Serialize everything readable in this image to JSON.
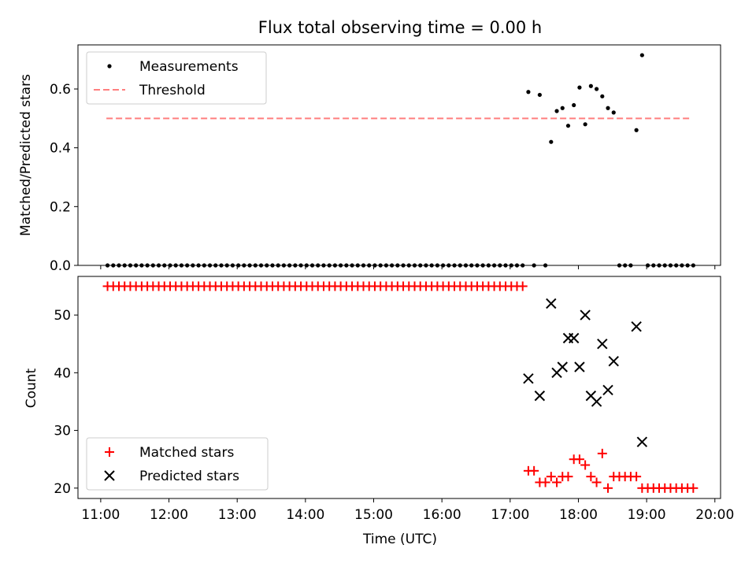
{
  "chart_data": [
    {
      "type": "scatter",
      "title": "Flux total observing time = 0.00 h",
      "xlabel": "",
      "ylabel": "Matched/Predicted stars",
      "xlim": [
        "10:40",
        "20:05"
      ],
      "ylim": [
        0,
        0.75
      ],
      "yticks": [
        0.0,
        0.2,
        0.4,
        0.6
      ],
      "ytick_labels": [
        "0.0",
        "0.2",
        "0.4",
        "0.6"
      ],
      "grid": false,
      "legend_position": "upper-left",
      "threshold": {
        "name": "Threshold",
        "value": 0.5,
        "x_start": "11:05",
        "x_end": "19:40",
        "color": "#ff7f7f",
        "style": "dashed"
      },
      "series": [
        {
          "name": "Measurements",
          "marker": "dot",
          "color": "#000000",
          "points": [
            [
              "11:06",
              0
            ],
            [
              "11:11",
              0
            ],
            [
              "11:16",
              0
            ],
            [
              "11:21",
              0
            ],
            [
              "11:26",
              0
            ],
            [
              "11:31",
              0
            ],
            [
              "11:36",
              0
            ],
            [
              "11:41",
              0
            ],
            [
              "11:46",
              0
            ],
            [
              "11:51",
              0
            ],
            [
              "11:56",
              0
            ],
            [
              "12:01",
              0
            ],
            [
              "12:06",
              0
            ],
            [
              "12:11",
              0
            ],
            [
              "12:16",
              0
            ],
            [
              "12:21",
              0
            ],
            [
              "12:26",
              0
            ],
            [
              "12:31",
              0
            ],
            [
              "12:36",
              0
            ],
            [
              "12:41",
              0
            ],
            [
              "12:46",
              0
            ],
            [
              "12:51",
              0
            ],
            [
              "12:56",
              0
            ],
            [
              "13:01",
              0
            ],
            [
              "13:06",
              0
            ],
            [
              "13:11",
              0
            ],
            [
              "13:16",
              0
            ],
            [
              "13:21",
              0
            ],
            [
              "13:26",
              0
            ],
            [
              "13:31",
              0
            ],
            [
              "13:36",
              0
            ],
            [
              "13:41",
              0
            ],
            [
              "13:46",
              0
            ],
            [
              "13:51",
              0
            ],
            [
              "13:56",
              0
            ],
            [
              "14:01",
              0
            ],
            [
              "14:06",
              0
            ],
            [
              "14:11",
              0
            ],
            [
              "14:16",
              0
            ],
            [
              "14:21",
              0
            ],
            [
              "14:26",
              0
            ],
            [
              "14:31",
              0
            ],
            [
              "14:36",
              0
            ],
            [
              "14:41",
              0
            ],
            [
              "14:46",
              0
            ],
            [
              "14:51",
              0
            ],
            [
              "14:56",
              0
            ],
            [
              "15:01",
              0
            ],
            [
              "15:06",
              0
            ],
            [
              "15:11",
              0
            ],
            [
              "15:16",
              0
            ],
            [
              "15:21",
              0
            ],
            [
              "15:26",
              0
            ],
            [
              "15:31",
              0
            ],
            [
              "15:36",
              0
            ],
            [
              "15:41",
              0
            ],
            [
              "15:46",
              0
            ],
            [
              "15:51",
              0
            ],
            [
              "15:56",
              0
            ],
            [
              "16:01",
              0
            ],
            [
              "16:06",
              0
            ],
            [
              "16:11",
              0
            ],
            [
              "16:16",
              0
            ],
            [
              "16:21",
              0
            ],
            [
              "16:26",
              0
            ],
            [
              "16:31",
              0
            ],
            [
              "16:36",
              0
            ],
            [
              "16:41",
              0
            ],
            [
              "16:46",
              0
            ],
            [
              "16:51",
              0
            ],
            [
              "16:56",
              0
            ],
            [
              "17:01",
              0
            ],
            [
              "17:06",
              0
            ],
            [
              "17:11",
              0
            ],
            [
              "17:16",
              0.59
            ],
            [
              "17:21",
              0
            ],
            [
              "17:26",
              0.58
            ],
            [
              "17:31",
              0
            ],
            [
              "17:36",
              0.42
            ],
            [
              "17:41",
              0.525
            ],
            [
              "17:46",
              0.535
            ],
            [
              "17:51",
              0.475
            ],
            [
              "17:56",
              0.545
            ],
            [
              "18:01",
              0.605
            ],
            [
              "18:06",
              0.48
            ],
            [
              "18:11",
              0.61
            ],
            [
              "18:16",
              0.6
            ],
            [
              "18:21",
              0.575
            ],
            [
              "18:26",
              0.535
            ],
            [
              "18:31",
              0.52
            ],
            [
              "18:36",
              0
            ],
            [
              "18:41",
              0
            ],
            [
              "18:46",
              0
            ],
            [
              "18:51",
              0.46
            ],
            [
              "18:56",
              0.715
            ],
            [
              "19:01",
              0
            ],
            [
              "19:06",
              0
            ],
            [
              "19:11",
              0
            ],
            [
              "19:16",
              0
            ],
            [
              "19:21",
              0
            ],
            [
              "19:26",
              0
            ],
            [
              "19:31",
              0
            ],
            [
              "19:36",
              0
            ],
            [
              "19:41",
              0
            ]
          ]
        }
      ]
    },
    {
      "type": "scatter",
      "title": "",
      "xlabel": "Time (UTC)",
      "ylabel": "Count",
      "xlim": [
        "10:40",
        "20:05"
      ],
      "ylim": [
        18.2,
        56.7
      ],
      "xticks": [
        "11:00",
        "12:00",
        "13:00",
        "14:00",
        "15:00",
        "16:00",
        "17:00",
        "18:00",
        "19:00",
        "20:00"
      ],
      "yticks": [
        20,
        30,
        40,
        50
      ],
      "ytick_labels": [
        "20",
        "30",
        "40",
        "50"
      ],
      "grid": false,
      "legend_position": "lower-left",
      "series": [
        {
          "name": "Matched stars",
          "marker": "plus",
          "color": "#ff0000",
          "points": [
            [
              "11:06",
              55
            ],
            [
              "11:11",
              55
            ],
            [
              "11:16",
              55
            ],
            [
              "11:21",
              55
            ],
            [
              "11:26",
              55
            ],
            [
              "11:31",
              55
            ],
            [
              "11:36",
              55
            ],
            [
              "11:41",
              55
            ],
            [
              "11:46",
              55
            ],
            [
              "11:51",
              55
            ],
            [
              "11:56",
              55
            ],
            [
              "12:01",
              55
            ],
            [
              "12:06",
              55
            ],
            [
              "12:11",
              55
            ],
            [
              "12:16",
              55
            ],
            [
              "12:21",
              55
            ],
            [
              "12:26",
              55
            ],
            [
              "12:31",
              55
            ],
            [
              "12:36",
              55
            ],
            [
              "12:41",
              55
            ],
            [
              "12:46",
              55
            ],
            [
              "12:51",
              55
            ],
            [
              "12:56",
              55
            ],
            [
              "13:01",
              55
            ],
            [
              "13:06",
              55
            ],
            [
              "13:11",
              55
            ],
            [
              "13:16",
              55
            ],
            [
              "13:21",
              55
            ],
            [
              "13:26",
              55
            ],
            [
              "13:31",
              55
            ],
            [
              "13:36",
              55
            ],
            [
              "13:41",
              55
            ],
            [
              "13:46",
              55
            ],
            [
              "13:51",
              55
            ],
            [
              "13:56",
              55
            ],
            [
              "14:01",
              55
            ],
            [
              "14:06",
              55
            ],
            [
              "14:11",
              55
            ],
            [
              "14:16",
              55
            ],
            [
              "14:21",
              55
            ],
            [
              "14:26",
              55
            ],
            [
              "14:31",
              55
            ],
            [
              "14:36",
              55
            ],
            [
              "14:41",
              55
            ],
            [
              "14:46",
              55
            ],
            [
              "14:51",
              55
            ],
            [
              "14:56",
              55
            ],
            [
              "15:01",
              55
            ],
            [
              "15:06",
              55
            ],
            [
              "15:11",
              55
            ],
            [
              "15:16",
              55
            ],
            [
              "15:21",
              55
            ],
            [
              "15:26",
              55
            ],
            [
              "15:31",
              55
            ],
            [
              "15:36",
              55
            ],
            [
              "15:41",
              55
            ],
            [
              "15:46",
              55
            ],
            [
              "15:51",
              55
            ],
            [
              "15:56",
              55
            ],
            [
              "16:01",
              55
            ],
            [
              "16:06",
              55
            ],
            [
              "16:11",
              55
            ],
            [
              "16:16",
              55
            ],
            [
              "16:21",
              55
            ],
            [
              "16:26",
              55
            ],
            [
              "16:31",
              55
            ],
            [
              "16:36",
              55
            ],
            [
              "16:41",
              55
            ],
            [
              "16:46",
              55
            ],
            [
              "16:51",
              55
            ],
            [
              "16:56",
              55
            ],
            [
              "17:01",
              55
            ],
            [
              "17:06",
              55
            ],
            [
              "17:11",
              55
            ],
            [
              "17:16",
              23
            ],
            [
              "17:21",
              23
            ],
            [
              "17:26",
              21
            ],
            [
              "17:31",
              21
            ],
            [
              "17:36",
              22
            ],
            [
              "17:41",
              21
            ],
            [
              "17:46",
              22
            ],
            [
              "17:51",
              22
            ],
            [
              "17:56",
              25
            ],
            [
              "18:01",
              25
            ],
            [
              "18:06",
              24
            ],
            [
              "18:11",
              22
            ],
            [
              "18:16",
              21
            ],
            [
              "18:21",
              26
            ],
            [
              "18:26",
              20
            ],
            [
              "18:31",
              22
            ],
            [
              "18:36",
              22
            ],
            [
              "18:41",
              22
            ],
            [
              "18:46",
              22
            ],
            [
              "18:51",
              22
            ],
            [
              "18:56",
              20
            ],
            [
              "19:01",
              20
            ],
            [
              "19:06",
              20
            ],
            [
              "19:11",
              20
            ],
            [
              "19:16",
              20
            ],
            [
              "19:21",
              20
            ],
            [
              "19:26",
              20
            ],
            [
              "19:31",
              20
            ],
            [
              "19:36",
              20
            ],
            [
              "19:41",
              20
            ]
          ]
        },
        {
          "name": "Predicted stars",
          "marker": "x",
          "color": "#000000",
          "points": [
            [
              "17:16",
              39
            ],
            [
              "17:26",
              36
            ],
            [
              "17:36",
              52
            ],
            [
              "17:41",
              40
            ],
            [
              "17:46",
              41
            ],
            [
              "17:51",
              46
            ],
            [
              "17:56",
              46
            ],
            [
              "18:01",
              41
            ],
            [
              "18:06",
              50
            ],
            [
              "18:11",
              36
            ],
            [
              "18:16",
              35
            ],
            [
              "18:21",
              45
            ],
            [
              "18:26",
              37
            ],
            [
              "18:31",
              42
            ],
            [
              "18:51",
              48
            ],
            [
              "18:56",
              28
            ]
          ]
        }
      ]
    }
  ]
}
